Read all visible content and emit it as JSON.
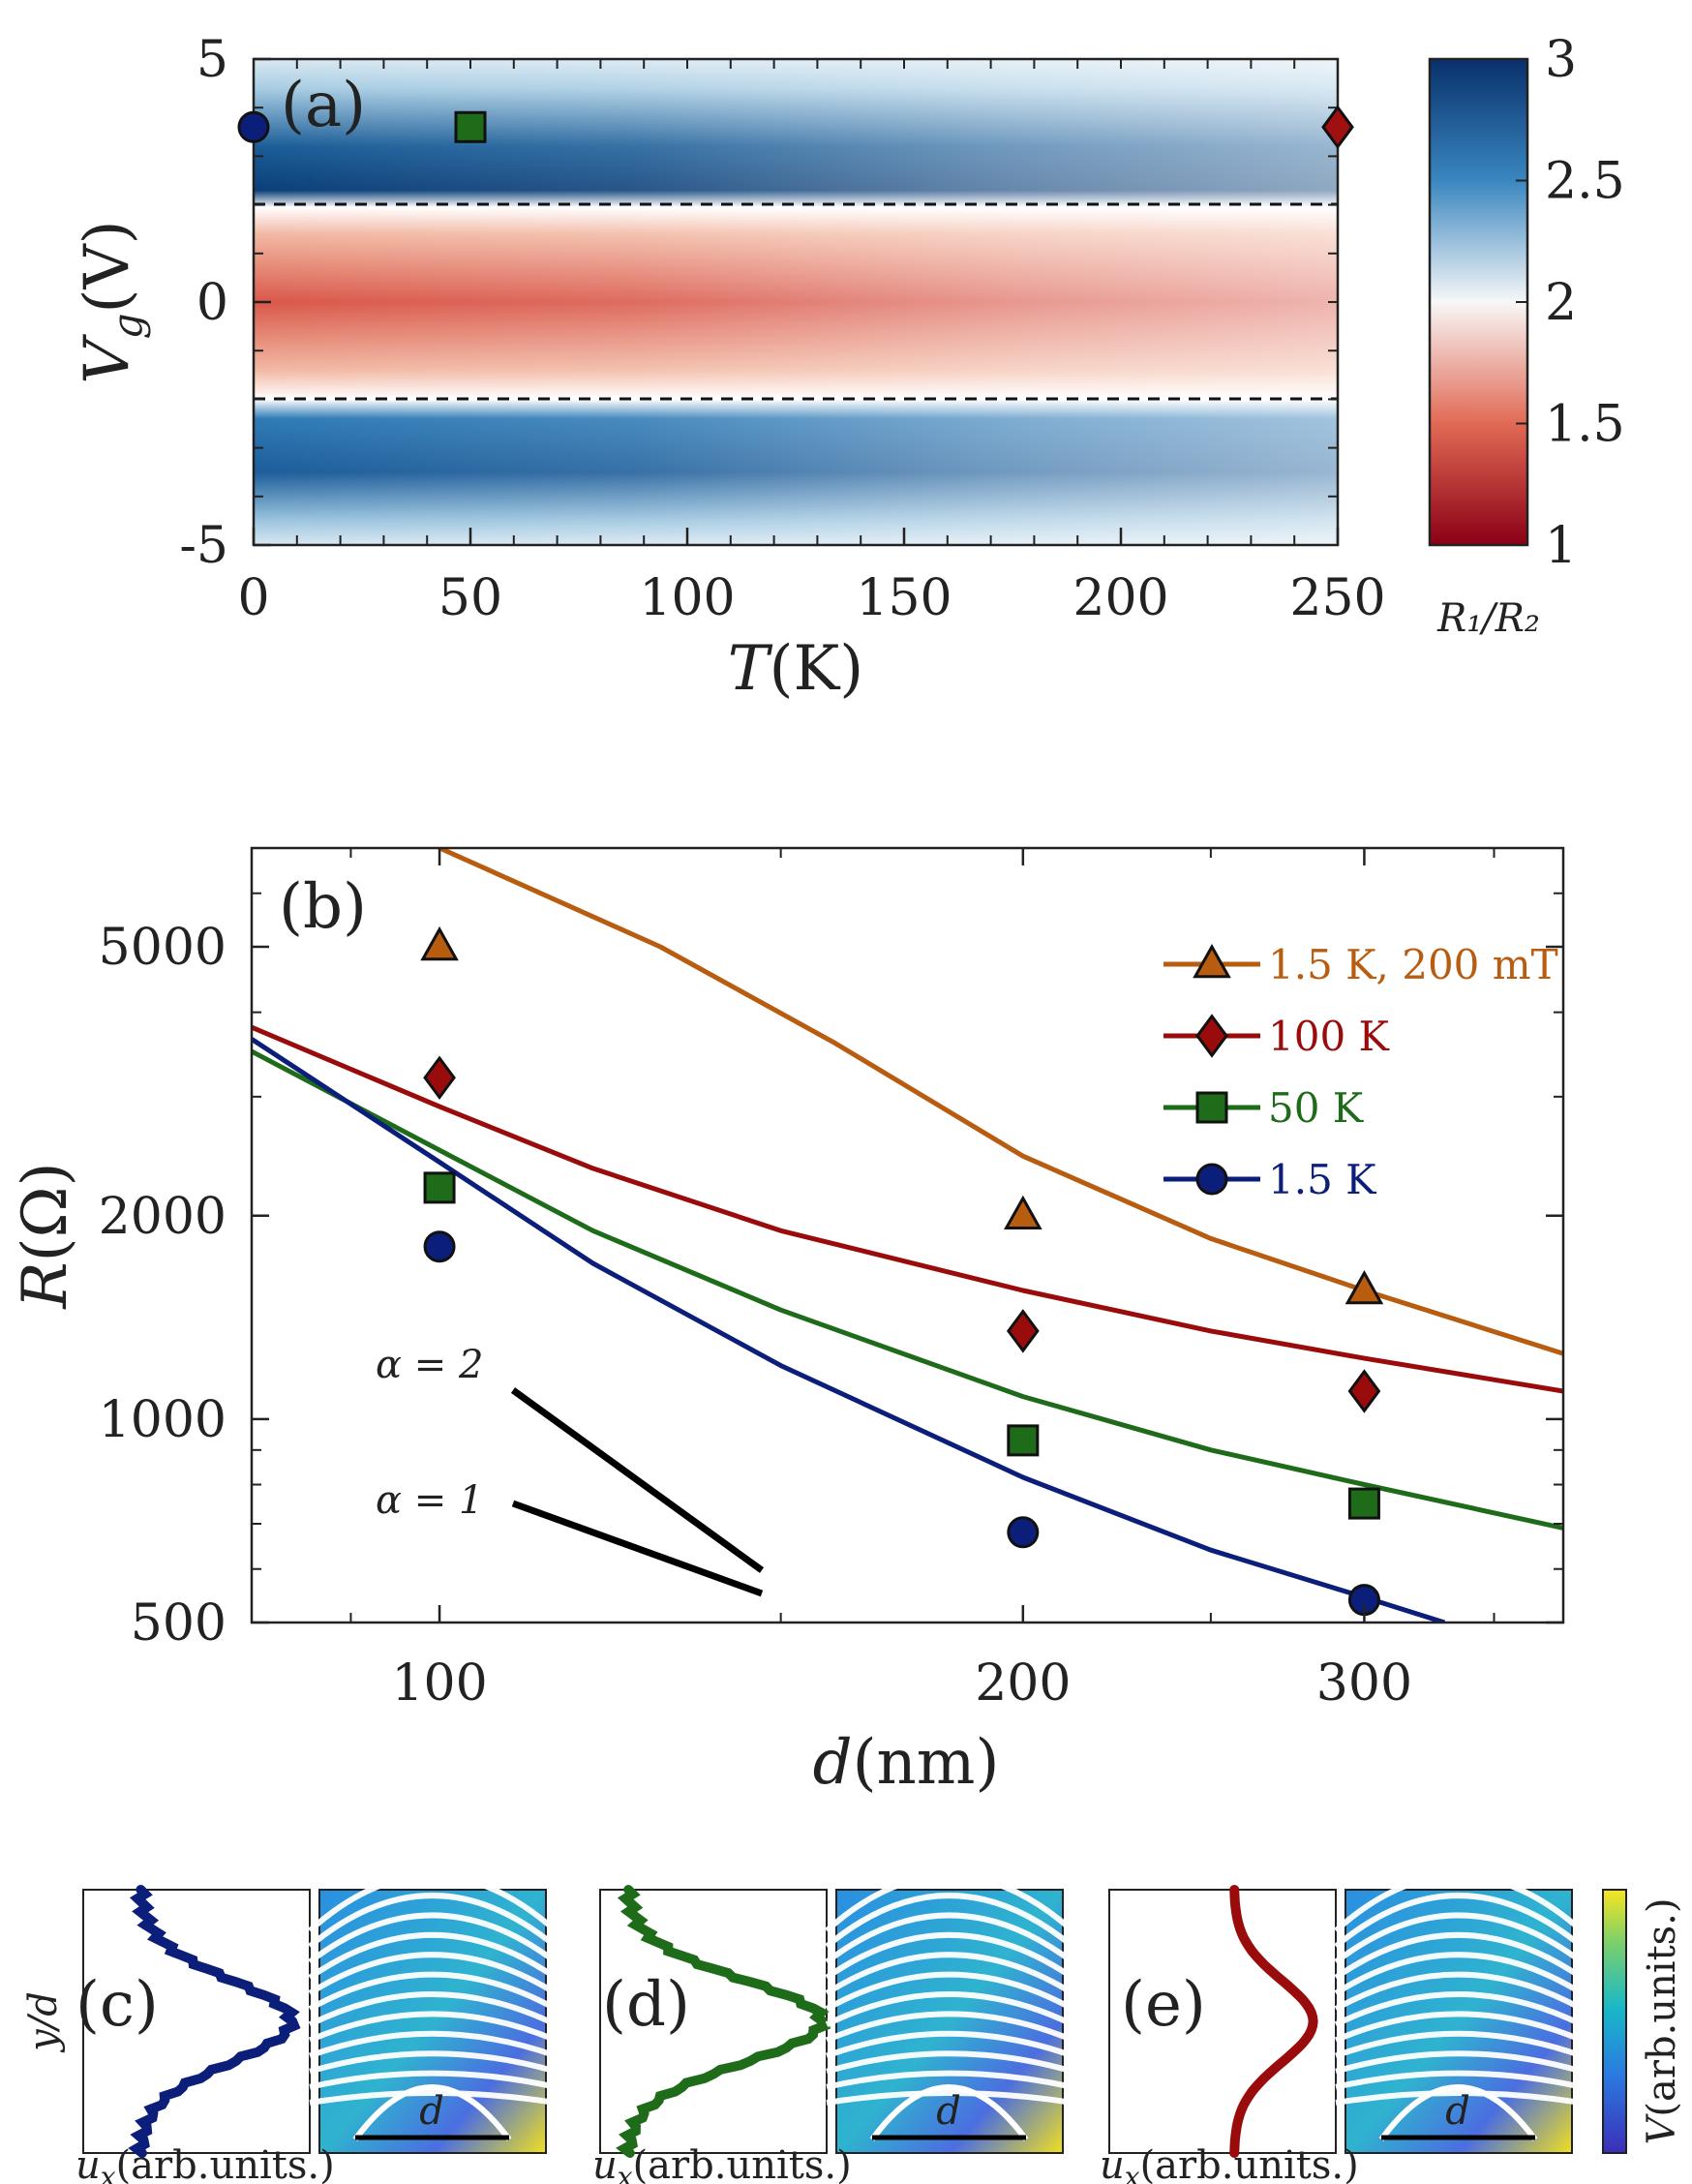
{
  "chart_data": [
    {
      "panel": "(a)",
      "type": "heatmap",
      "xlabel_var": "T",
      "xlabel_unit": "(K)",
      "ylabel_var": "V",
      "ylabel_sub": "g",
      "ylabel_unit": "(V)",
      "xlim": [
        0,
        250
      ],
      "ylim": [
        -5,
        5
      ],
      "xticks": [
        "0",
        "50",
        "100",
        "150",
        "200",
        "250"
      ],
      "yticks": [
        "5",
        "0",
        "-5"
      ],
      "dashed_lines_Vg": [
        2,
        -2
      ],
      "markers": [
        {
          "shape": "circle",
          "T": 0,
          "Vg": 3.6,
          "color": "#0b1f7a"
        },
        {
          "shape": "square",
          "T": 50,
          "Vg": 3.6,
          "color": "#1e6b1a"
        },
        {
          "shape": "diamond",
          "T": 250,
          "Vg": 3.6,
          "color": "#a01010"
        }
      ],
      "colorbar": {
        "label": "R₁/R₂",
        "range": [
          1,
          3
        ],
        "ticks": [
          "3",
          "2.5",
          "2",
          "1.5",
          "1"
        ]
      }
    },
    {
      "panel": "(b)",
      "type": "line",
      "scale": "log-log",
      "xlabel_var": "d",
      "xlabel_unit": "(nm)",
      "ylabel_var": "R",
      "ylabel_unit": "(Ω)",
      "xlim": [
        80,
        380
      ],
      "ylim": [
        500,
        7000
      ],
      "xticks": [
        "100",
        "200",
        "300"
      ],
      "yticks": [
        "5000",
        "2000",
        "1000",
        "500"
      ],
      "series": [
        {
          "name": "1.5 K, 200 mT",
          "color": "#b85c10",
          "marker": "triangle",
          "line_x": [
            100,
            130,
            160,
            200,
            250,
            300,
            380
          ],
          "line_y": [
            7000,
            5000,
            3600,
            2450,
            1850,
            1550,
            1250
          ],
          "points_x": [
            100,
            200,
            300
          ],
          "points_y": [
            5000,
            2000,
            1550
          ]
        },
        {
          "name": "100 K",
          "color": "#9a0c0c",
          "marker": "diamond",
          "line_x": [
            80,
            100,
            120,
            150,
            200,
            250,
            300,
            380
          ],
          "line_y": [
            3800,
            2900,
            2350,
            1900,
            1550,
            1350,
            1230,
            1100
          ],
          "points_x": [
            100,
            200,
            300
          ],
          "points_y": [
            3200,
            1350,
            1100
          ]
        },
        {
          "name": "50 K",
          "color": "#1e6b1a",
          "marker": "square",
          "line_x": [
            80,
            100,
            120,
            150,
            200,
            250,
            300,
            380
          ],
          "line_y": [
            3500,
            2500,
            1900,
            1450,
            1080,
            900,
            800,
            690
          ],
          "points_x": [
            100,
            200,
            300
          ],
          "points_y": [
            2200,
            930,
            750
          ]
        },
        {
          "name": "1.5 K",
          "color": "#0b1f7a",
          "marker": "circle",
          "line_x": [
            80,
            100,
            120,
            150,
            200,
            250,
            300,
            330
          ],
          "line_y": [
            3650,
            2400,
            1700,
            1200,
            820,
            640,
            545,
            500
          ],
          "points_x": [
            100,
            200,
            300
          ],
          "points_y": [
            1800,
            680,
            540
          ]
        }
      ],
      "slope_labels": [
        "α = 2",
        "α = 1"
      ]
    },
    {
      "panels": [
        "(c)",
        "(d)",
        "(e)"
      ],
      "type": "line",
      "profile_colors": [
        "#0b1f7a",
        "#1e6b1a",
        "#9a0c0c"
      ],
      "ylabel": "y/d",
      "xlabel_var": "u",
      "xlabel_sub": "x",
      "xlabel_unit": "(arb.units.)",
      "map_label": "d",
      "colorbar_label_var": "V",
      "colorbar_label_unit": "(arb.units.)"
    }
  ]
}
